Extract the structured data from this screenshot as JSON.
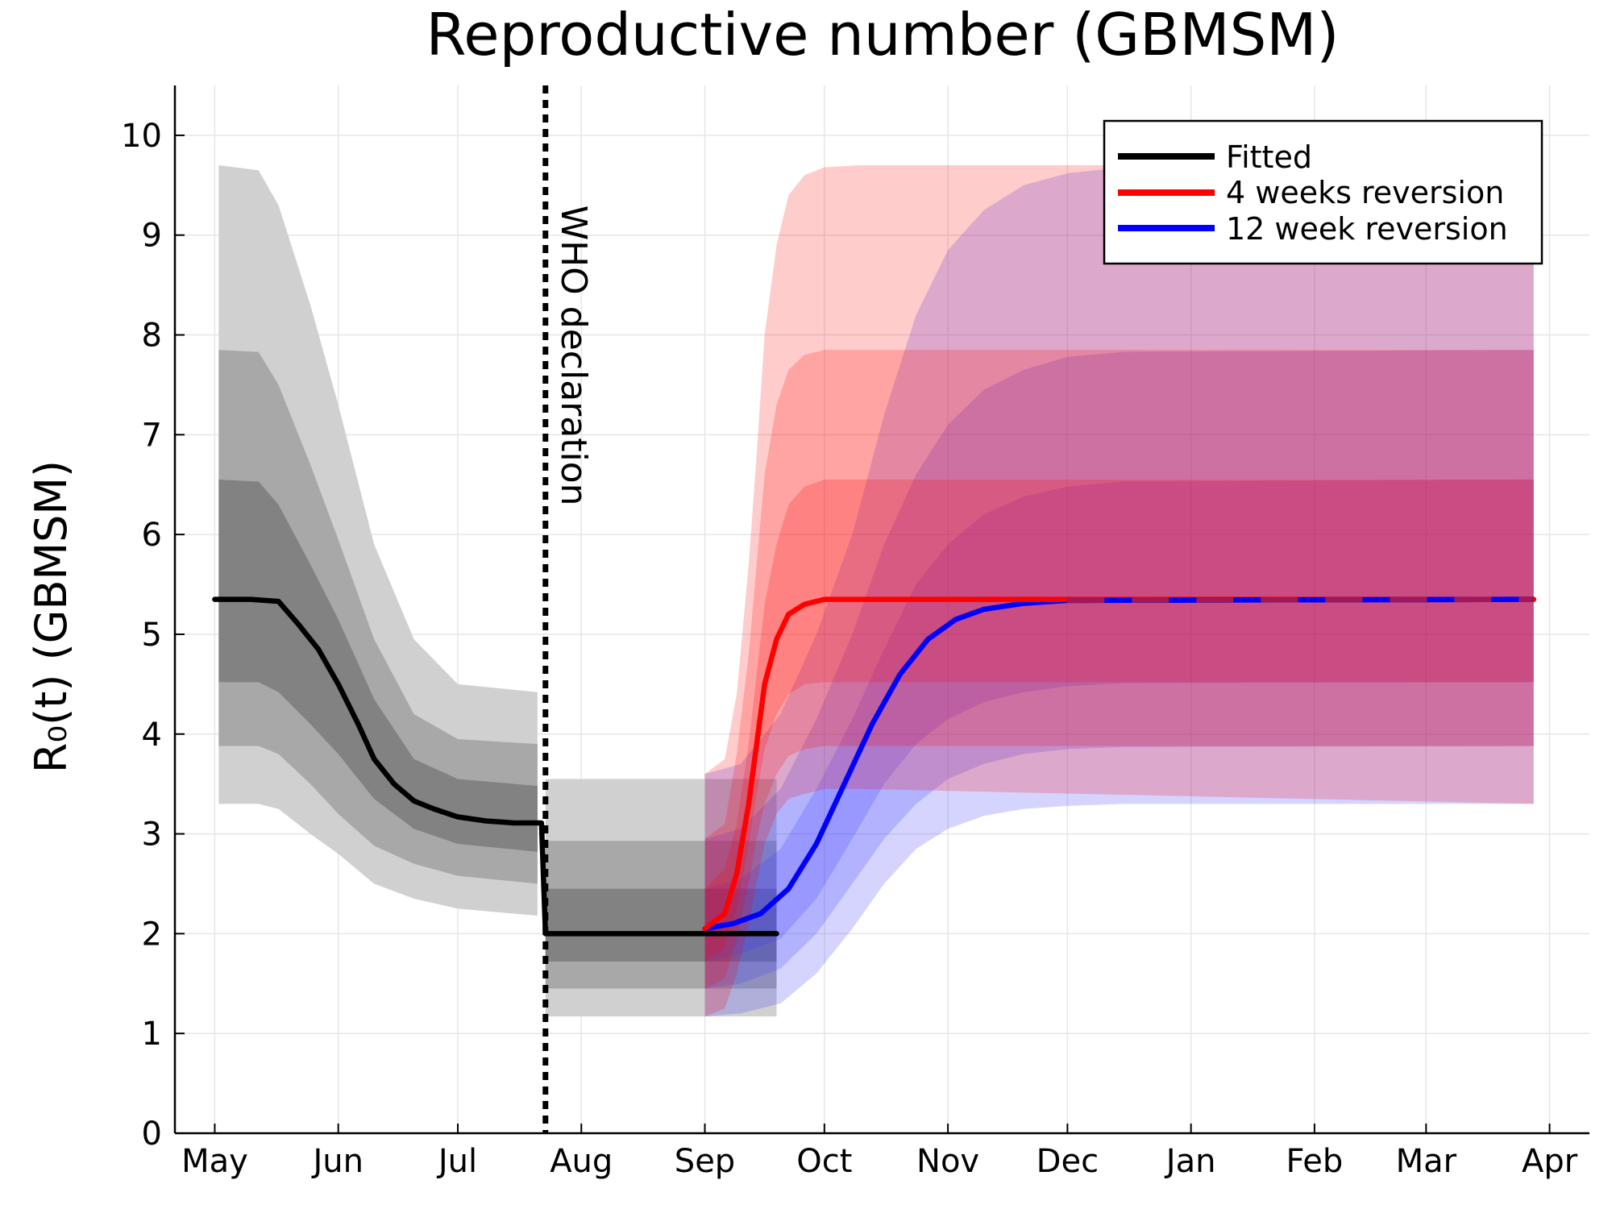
{
  "chart_data": {
    "type": "line",
    "title": "Reproductive number (GBMSM)",
    "xlabel": "",
    "ylabel": "R₀(t) (GBMSM)",
    "ylim": [
      0,
      10.5
    ],
    "yticks": [
      0,
      1,
      2,
      3,
      4,
      5,
      6,
      7,
      8,
      9,
      10
    ],
    "x_axis_type": "date",
    "xlim": [
      "2022-04-21",
      "2023-04-11"
    ],
    "xticks": [
      {
        "date": "2022-05-01",
        "label": "May"
      },
      {
        "date": "2022-06-01",
        "label": "Jun"
      },
      {
        "date": "2022-07-01",
        "label": "Jul"
      },
      {
        "date": "2022-08-01",
        "label": "Aug"
      },
      {
        "date": "2022-09-01",
        "label": "Sep"
      },
      {
        "date": "2022-10-01",
        "label": "Oct"
      },
      {
        "date": "2022-11-01",
        "label": "Nov"
      },
      {
        "date": "2022-12-01",
        "label": "Dec"
      },
      {
        "date": "2023-01-01",
        "label": "Jan"
      },
      {
        "date": "2023-02-01",
        "label": "Feb"
      },
      {
        "date": "2023-03-01",
        "label": "Mar"
      },
      {
        "date": "2023-04-01",
        "label": "Apr"
      }
    ],
    "grid": true,
    "legend_position": "top-right",
    "annotation": {
      "label": "WHO declaration",
      "date": "2022-07-23",
      "style": "dotted-vertical"
    },
    "colors": {
      "fitted": "#000000",
      "four_week": "#ff0000",
      "twelve_week": "#0000ff",
      "overlap_dash": "#a0185a"
    },
    "series": [
      {
        "name": "Fitted",
        "color": "#000000",
        "points": [
          [
            "2022-05-01",
            5.35
          ],
          [
            "2022-05-10",
            5.35
          ],
          [
            "2022-05-17",
            5.33
          ],
          [
            "2022-05-22",
            5.1
          ],
          [
            "2022-05-27",
            4.85
          ],
          [
            "2022-06-01",
            4.5
          ],
          [
            "2022-06-06",
            4.1
          ],
          [
            "2022-06-10",
            3.75
          ],
          [
            "2022-06-15",
            3.5
          ],
          [
            "2022-06-20",
            3.33
          ],
          [
            "2022-06-25",
            3.25
          ],
          [
            "2022-07-01",
            3.17
          ],
          [
            "2022-07-08",
            3.13
          ],
          [
            "2022-07-15",
            3.11
          ],
          [
            "2022-07-22",
            3.11
          ],
          [
            "2022-07-23",
            2.0
          ],
          [
            "2022-09-19",
            2.0
          ]
        ],
        "bands": [
          {
            "level": "outer",
            "points": [
              [
                "2022-05-02",
                3.3,
                9.7
              ],
              [
                "2022-05-12",
                3.3,
                9.65
              ],
              [
                "2022-05-17",
                3.25,
                9.3
              ],
              [
                "2022-05-25",
                3.0,
                8.3
              ],
              [
                "2022-06-01",
                2.8,
                7.3
              ],
              [
                "2022-06-10",
                2.5,
                5.9
              ],
              [
                "2022-06-20",
                2.35,
                4.95
              ],
              [
                "2022-07-01",
                2.25,
                4.5
              ],
              [
                "2022-07-21",
                2.18,
                4.42
              ]
            ]
          },
          {
            "level": "middle",
            "points": [
              [
                "2022-05-02",
                3.88,
                7.85
              ],
              [
                "2022-05-12",
                3.88,
                7.83
              ],
              [
                "2022-05-17",
                3.8,
                7.5
              ],
              [
                "2022-05-25",
                3.5,
                6.7
              ],
              [
                "2022-06-01",
                3.2,
                5.95
              ],
              [
                "2022-06-10",
                2.88,
                4.95
              ],
              [
                "2022-06-20",
                2.7,
                4.2
              ],
              [
                "2022-07-01",
                2.58,
                3.95
              ],
              [
                "2022-07-21",
                2.5,
                3.9
              ]
            ]
          },
          {
            "level": "inner",
            "points": [
              [
                "2022-05-02",
                4.52,
                6.55
              ],
              [
                "2022-05-12",
                4.52,
                6.53
              ],
              [
                "2022-05-17",
                4.42,
                6.3
              ],
              [
                "2022-05-25",
                4.1,
                5.7
              ],
              [
                "2022-06-01",
                3.8,
                5.15
              ],
              [
                "2022-06-10",
                3.35,
                4.35
              ],
              [
                "2022-06-20",
                3.05,
                3.75
              ],
              [
                "2022-07-01",
                2.9,
                3.55
              ],
              [
                "2022-07-21",
                2.82,
                3.48
              ]
            ]
          },
          {
            "level": "outer",
            "points": [
              [
                "2022-07-23",
                1.17,
                3.55
              ],
              [
                "2022-09-19",
                1.17,
                3.55
              ]
            ]
          },
          {
            "level": "middle",
            "points": [
              [
                "2022-07-23",
                1.45,
                2.93
              ],
              [
                "2022-09-19",
                1.45,
                2.93
              ]
            ]
          },
          {
            "level": "inner",
            "points": [
              [
                "2022-07-23",
                1.72,
                2.45
              ],
              [
                "2022-09-19",
                1.72,
                2.45
              ]
            ]
          }
        ]
      },
      {
        "name": "4 weeks reversion",
        "color": "#ff0000",
        "points": [
          [
            "2022-09-01",
            2.05
          ],
          [
            "2022-09-06",
            2.2
          ],
          [
            "2022-09-09",
            2.6
          ],
          [
            "2022-09-12",
            3.3
          ],
          [
            "2022-09-14",
            3.9
          ],
          [
            "2022-09-16",
            4.5
          ],
          [
            "2022-09-19",
            4.95
          ],
          [
            "2022-09-22",
            5.2
          ],
          [
            "2022-09-26",
            5.3
          ],
          [
            "2022-10-01",
            5.35
          ],
          [
            "2023-03-28",
            5.35
          ]
        ],
        "bands": [
          {
            "level": "outer",
            "points": [
              [
                "2022-09-01",
                1.17,
                3.6
              ],
              [
                "2022-09-06",
                1.25,
                3.75
              ],
              [
                "2022-09-09",
                1.6,
                4.4
              ],
              [
                "2022-09-12",
                2.1,
                5.7
              ],
              [
                "2022-09-14",
                2.5,
                6.8
              ],
              [
                "2022-09-16",
                2.9,
                8.0
              ],
              [
                "2022-09-19",
                3.2,
                8.9
              ],
              [
                "2022-09-22",
                3.35,
                9.4
              ],
              [
                "2022-09-26",
                3.4,
                9.6
              ],
              [
                "2022-10-01",
                3.45,
                9.68
              ],
              [
                "2022-10-10",
                3.45,
                9.7
              ],
              [
                "2023-03-28",
                3.3,
                9.7
              ]
            ]
          },
          {
            "level": "middle",
            "points": [
              [
                "2022-09-01",
                1.45,
                2.95
              ],
              [
                "2022-09-06",
                1.55,
                3.1
              ],
              [
                "2022-09-09",
                1.95,
                3.8
              ],
              [
                "2022-09-12",
                2.5,
                4.8
              ],
              [
                "2022-09-14",
                2.95,
                5.7
              ],
              [
                "2022-09-16",
                3.3,
                6.6
              ],
              [
                "2022-09-19",
                3.6,
                7.3
              ],
              [
                "2022-09-22",
                3.78,
                7.65
              ],
              [
                "2022-09-26",
                3.85,
                7.8
              ],
              [
                "2022-10-01",
                3.88,
                7.85
              ],
              [
                "2023-03-28",
                3.88,
                7.85
              ]
            ]
          },
          {
            "level": "inner",
            "points": [
              [
                "2022-09-01",
                1.72,
                2.45
              ],
              [
                "2022-09-06",
                1.85,
                2.65
              ],
              [
                "2022-09-09",
                2.25,
                3.1
              ],
              [
                "2022-09-12",
                2.9,
                3.9
              ],
              [
                "2022-09-14",
                3.4,
                4.6
              ],
              [
                "2022-09-16",
                3.85,
                5.3
              ],
              [
                "2022-09-19",
                4.2,
                5.9
              ],
              [
                "2022-09-22",
                4.4,
                6.3
              ],
              [
                "2022-09-26",
                4.5,
                6.48
              ],
              [
                "2022-10-01",
                4.52,
                6.55
              ],
              [
                "2023-03-28",
                4.52,
                6.55
              ]
            ]
          }
        ]
      },
      {
        "name": "12 week reversion",
        "color": "#0000ff",
        "points": [
          [
            "2022-09-01",
            2.05
          ],
          [
            "2022-09-08",
            2.1
          ],
          [
            "2022-09-15",
            2.2
          ],
          [
            "2022-09-22",
            2.45
          ],
          [
            "2022-09-29",
            2.9
          ],
          [
            "2022-10-06",
            3.5
          ],
          [
            "2022-10-13",
            4.1
          ],
          [
            "2022-10-20",
            4.6
          ],
          [
            "2022-10-27",
            4.95
          ],
          [
            "2022-11-03",
            5.15
          ],
          [
            "2022-11-10",
            5.25
          ],
          [
            "2022-11-20",
            5.31
          ],
          [
            "2022-12-01",
            5.34
          ],
          [
            "2023-03-28",
            5.35
          ]
        ],
        "bands": [
          {
            "level": "outer",
            "points": [
              [
                "2022-09-01",
                1.17,
                3.6
              ],
              [
                "2022-09-10",
                1.2,
                3.7
              ],
              [
                "2022-09-20",
                1.3,
                4.2
              ],
              [
                "2022-09-29",
                1.6,
                5.0
              ],
              [
                "2022-10-08",
                2.05,
                6.0
              ],
              [
                "2022-10-16",
                2.5,
                7.2
              ],
              [
                "2022-10-24",
                2.85,
                8.2
              ],
              [
                "2022-11-01",
                3.05,
                8.85
              ],
              [
                "2022-11-10",
                3.18,
                9.25
              ],
              [
                "2022-11-20",
                3.25,
                9.5
              ],
              [
                "2022-12-01",
                3.28,
                9.62
              ],
              [
                "2022-12-15",
                3.3,
                9.68
              ],
              [
                "2023-03-28",
                3.3,
                9.7
              ]
            ]
          },
          {
            "level": "middle",
            "points": [
              [
                "2022-09-01",
                1.45,
                2.95
              ],
              [
                "2022-09-10",
                1.5,
                3.05
              ],
              [
                "2022-09-20",
                1.65,
                3.45
              ],
              [
                "2022-09-29",
                2.0,
                4.15
              ],
              [
                "2022-10-08",
                2.5,
                5.0
              ],
              [
                "2022-10-16",
                2.95,
                5.9
              ],
              [
                "2022-10-24",
                3.3,
                6.6
              ],
              [
                "2022-11-01",
                3.55,
                7.1
              ],
              [
                "2022-11-10",
                3.7,
                7.45
              ],
              [
                "2022-11-20",
                3.8,
                7.65
              ],
              [
                "2022-12-01",
                3.85,
                7.78
              ],
              [
                "2022-12-15",
                3.87,
                7.83
              ],
              [
                "2023-03-28",
                3.88,
                7.85
              ]
            ]
          },
          {
            "level": "inner",
            "points": [
              [
                "2022-09-01",
                1.72,
                2.45
              ],
              [
                "2022-09-10",
                1.8,
                2.55
              ],
              [
                "2022-09-20",
                1.95,
                2.85
              ],
              [
                "2022-09-29",
                2.35,
                3.45
              ],
              [
                "2022-10-08",
                2.95,
                4.15
              ],
              [
                "2022-10-16",
                3.5,
                4.85
              ],
              [
                "2022-10-24",
                3.9,
                5.5
              ],
              [
                "2022-11-01",
                4.15,
                5.9
              ],
              [
                "2022-11-10",
                4.32,
                6.2
              ],
              [
                "2022-11-20",
                4.42,
                6.38
              ],
              [
                "2022-12-01",
                4.48,
                6.48
              ],
              [
                "2022-12-15",
                4.51,
                6.53
              ],
              [
                "2023-03-28",
                4.52,
                6.55
              ]
            ]
          }
        ]
      }
    ]
  }
}
